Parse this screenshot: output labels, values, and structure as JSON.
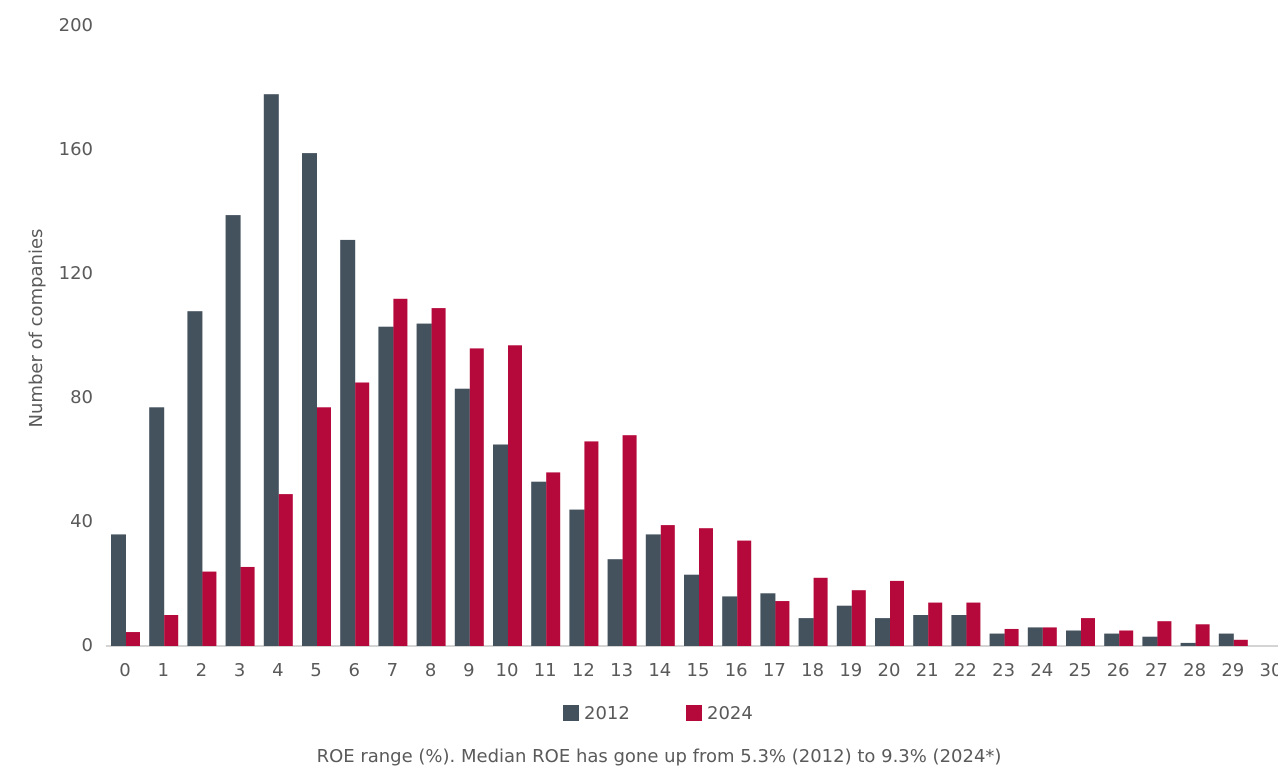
{
  "chart_data": {
    "type": "bar",
    "y_label": "Number of companies",
    "caption": "ROE range (%). Median ROE has gone up from 5.3% (2012) to 9.3% (2024*)",
    "categories": [
      "0",
      "1",
      "2",
      "3",
      "4",
      "5",
      "6",
      "7",
      "8",
      "9",
      "10",
      "11",
      "12",
      "13",
      "14",
      "15",
      "16",
      "17",
      "18",
      "19",
      "20",
      "21",
      "22",
      "23",
      "24",
      "25",
      "26",
      "27",
      "28",
      "29",
      "30"
    ],
    "series": [
      {
        "name": "2012",
        "color": "#44525e",
        "values": [
          36,
          77,
          108,
          139,
          178,
          159,
          131,
          103,
          104,
          83,
          65,
          53,
          44,
          28,
          36,
          23,
          16,
          17,
          9,
          13,
          9,
          10,
          10,
          4,
          6,
          5,
          4,
          3,
          1,
          4,
          null
        ]
      },
      {
        "name": "2024",
        "color": "#b5093b",
        "values": [
          4.5,
          10,
          24,
          25.5,
          49,
          77,
          85,
          112,
          109,
          96,
          97,
          56,
          66,
          68,
          39,
          38,
          34,
          14.5,
          22,
          18,
          21,
          14,
          14,
          5.5,
          6,
          9,
          5,
          8,
          7,
          2,
          null
        ]
      }
    ],
    "ylim": [
      0,
      200
    ],
    "yticks": [
      0,
      40,
      80,
      120,
      160,
      200
    ],
    "grid": false,
    "legend": "bottom"
  }
}
